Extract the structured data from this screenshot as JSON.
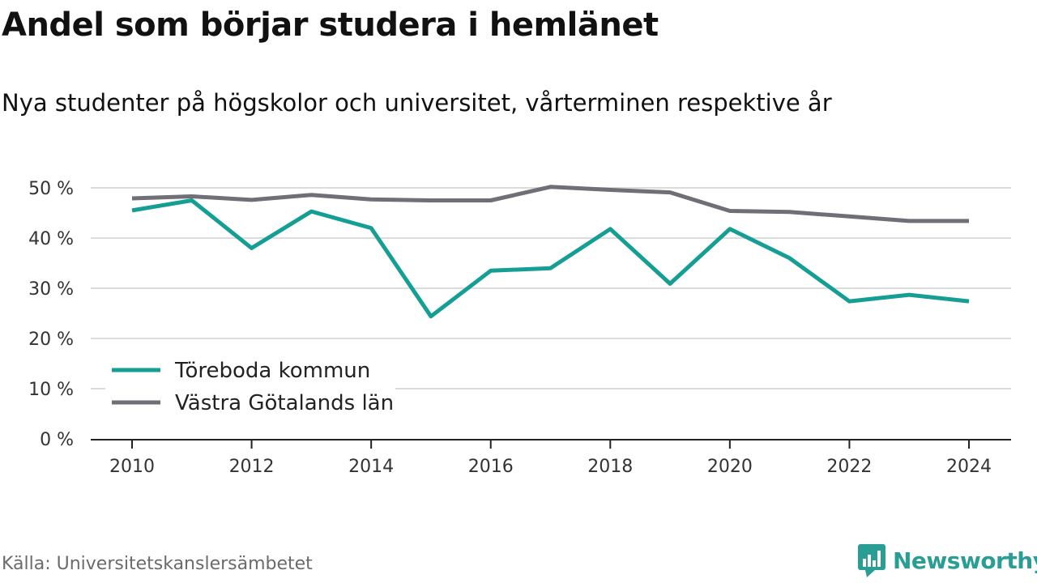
{
  "title": "Andel som börjar studera i hemlänet",
  "subtitle": "Nya studenter på högskolor och universitet, vårterminen respektive år",
  "source": "Källa: Universitetskanslersämbetet",
  "brand": {
    "name": "Newsworthy",
    "icon": "newsworthy-logo-icon",
    "color": "#2a9d94"
  },
  "chart_data": {
    "type": "line",
    "title": "Andel som börjar studera i hemlänet",
    "subtitle": "Nya studenter på högskolor och universitet, vårterminen respektive år",
    "x": [
      2010,
      2011,
      2012,
      2013,
      2014,
      2015,
      2016,
      2017,
      2018,
      2019,
      2020,
      2021,
      2022,
      2023,
      2024
    ],
    "x_ticks": [
      "2010",
      "2012",
      "2014",
      "2016",
      "2018",
      "2020",
      "2022",
      "2024"
    ],
    "y_ticks": [
      "0 %",
      "10 %",
      "20 %",
      "30 %",
      "40 %",
      "50 %"
    ],
    "ylim": [
      0,
      50
    ],
    "grid": true,
    "legend_position": "bottom-left",
    "series": [
      {
        "name": "Töreboda kommun",
        "color": "#159e93",
        "values": [
          45.5,
          47.5,
          38.0,
          45.3,
          42.0,
          24.4,
          33.5,
          34.0,
          41.8,
          30.9,
          41.8,
          36.0,
          27.4,
          28.7,
          27.4
        ]
      },
      {
        "name": "Västra Götalands län",
        "color": "#706e76",
        "values": [
          47.9,
          48.3,
          47.6,
          48.6,
          47.7,
          47.5,
          47.5,
          50.2,
          49.6,
          49.1,
          45.4,
          45.2,
          44.3,
          43.4,
          43.4
        ]
      }
    ]
  }
}
